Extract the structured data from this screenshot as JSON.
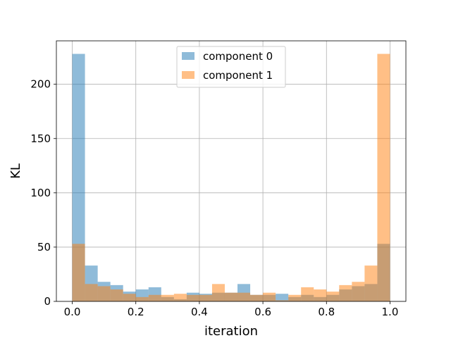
{
  "chart_data": {
    "type": "bar",
    "title": "",
    "xlabel": "iteration",
    "ylabel": "KL",
    "xlim": [
      -0.05,
      1.05
    ],
    "ylim": [
      0,
      240
    ],
    "xticks": [
      0.0,
      0.2,
      0.4,
      0.6,
      0.8,
      1.0
    ],
    "xtick_labels": [
      "0.0",
      "0.2",
      "0.4",
      "0.6",
      "0.8",
      "1.0"
    ],
    "yticks": [
      0,
      50,
      100,
      150,
      200
    ],
    "ytick_labels": [
      "0",
      "50",
      "100",
      "150",
      "200"
    ],
    "grid": true,
    "legend": "upper-center",
    "bin_edges": [
      0,
      0.04,
      0.08,
      0.12,
      0.16,
      0.2,
      0.24,
      0.28,
      0.32,
      0.36,
      0.4,
      0.44,
      0.48,
      0.52,
      0.56,
      0.6,
      0.64,
      0.68,
      0.72,
      0.76,
      0.8,
      0.84,
      0.88,
      0.92,
      0.96,
      1.0
    ],
    "series": [
      {
        "name": "component 0",
        "color": "#1f77b4",
        "values": [
          228,
          33,
          18,
          15,
          9,
          11,
          13,
          4,
          2,
          8,
          7,
          8,
          8,
          16,
          6,
          6,
          7,
          4,
          6,
          4,
          6,
          11,
          14,
          16,
          53
        ]
      },
      {
        "name": "component 1",
        "color": "#ff7f0e",
        "values": [
          53,
          16,
          14,
          11,
          7,
          4,
          6,
          6,
          7,
          6,
          6,
          16,
          8,
          8,
          6,
          8,
          1,
          6,
          13,
          11,
          9,
          15,
          18,
          33,
          228
        ]
      }
    ]
  }
}
